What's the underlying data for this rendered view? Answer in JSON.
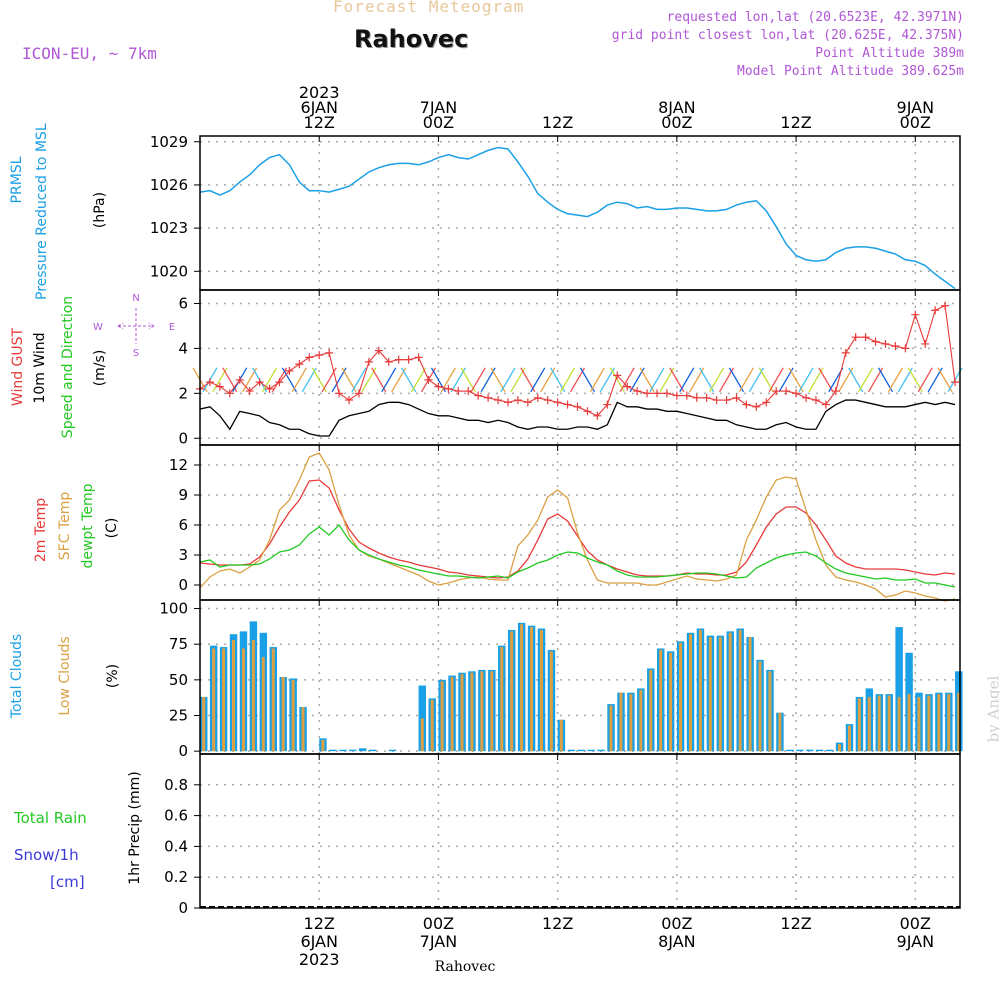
{
  "header": {
    "subtitle": "Forecast Meteogram",
    "location": "Rahovec",
    "model": "ICON-EU, ~ 7km",
    "requested": "requested lon,lat (20.6523E, 42.3971N)",
    "grid_point": "grid point closest lon,lat (20.625E, 42.375N)",
    "point_altitude": "Point Altitude 389m",
    "model_altitude": "Model Point Altitude 389.625m"
  },
  "watermark": "by Angel",
  "footer_label": "Rahovec",
  "time_axis": {
    "ticks": [
      {
        "x": 12,
        "top": [
          "2023",
          "6JAN",
          "12Z"
        ],
        "bottom": [
          "12Z",
          "6JAN",
          "2023"
        ]
      },
      {
        "x": 24,
        "top": [
          "7JAN",
          "00Z"
        ],
        "bottom": [
          "00Z",
          "7JAN"
        ]
      },
      {
        "x": 36,
        "top": [
          "12Z"
        ],
        "bottom": [
          "12Z"
        ]
      },
      {
        "x": 48,
        "top": [
          "8JAN",
          "00Z"
        ],
        "bottom": [
          "00Z",
          "8JAN"
        ]
      },
      {
        "x": 60,
        "top": [
          "12Z"
        ],
        "bottom": [
          "12Z"
        ]
      },
      {
        "x": 72,
        "top": [
          "9JAN",
          "00Z"
        ],
        "bottom": [
          "00Z",
          "9JAN"
        ]
      }
    ]
  },
  "labels": {
    "pressure": [
      "PRMSL",
      "Pressure Reduced to MSL",
      "(hPa)"
    ],
    "wind": [
      "Wind GUST",
      "10m Wind",
      "Speed and Direction",
      "(m/s)"
    ],
    "compass": {
      "n": "N",
      "s": "S",
      "w": "W",
      "e": "E"
    },
    "temp": [
      "2m Temp",
      "SFC Temp",
      "dewpt Temp",
      "(C)"
    ],
    "clouds": [
      "Total Clouds",
      "Low Clouds",
      "(%)"
    ],
    "precip": [
      "1hr Precip (mm)"
    ],
    "precip_legend": [
      "Total  Rain",
      "Snow/1h",
      "[cm]"
    ]
  },
  "colors": {
    "pressure": "#1aa0e6",
    "gust": "#e83a3a",
    "wind": "#000000",
    "temp2m": "#e83a3a",
    "sfc": "#dca042",
    "dewpt": "#22c922",
    "total_clouds": "#1aa0e6",
    "low_clouds": "#dca042",
    "rain": "#22c922",
    "snow": "#3a3ad9",
    "annot": "#b057d6"
  },
  "chart_data": [
    {
      "type": "line",
      "panel": "pressure",
      "x_unit": "hours from 6JAN 00Z",
      "xlim": [
        0,
        76.5
      ],
      "ylim": [
        1018.7,
        1029.4
      ],
      "yticks": [
        1020,
        1023,
        1026,
        1029
      ],
      "x": [
        0,
        1,
        2,
        3,
        4,
        5,
        6,
        7,
        8,
        9,
        10,
        11,
        12,
        13,
        14,
        15,
        16,
        17,
        18,
        19,
        20,
        21,
        22,
        23,
        24,
        25,
        26,
        27,
        28,
        29,
        30,
        31,
        32,
        33,
        34,
        35,
        36,
        37,
        38,
        39,
        40,
        41,
        42,
        43,
        44,
        45,
        46,
        47,
        48,
        49,
        50,
        51,
        52,
        53,
        54,
        55,
        56,
        57,
        58,
        59,
        60,
        61,
        62,
        63,
        64,
        65,
        66,
        67,
        68,
        69,
        70,
        71,
        72,
        73,
        74,
        75,
        76
      ],
      "series": [
        {
          "name": "PRMSL",
          "values": [
            1025.5,
            1025.6,
            1025.3,
            1025.6,
            1026.2,
            1026.7,
            1027.4,
            1027.9,
            1028.1,
            1027.4,
            1026.2,
            1025.6,
            1025.6,
            1025.5,
            1025.7,
            1025.9,
            1026.4,
            1026.9,
            1027.2,
            1027.4,
            1027.5,
            1027.5,
            1027.4,
            1027.6,
            1027.9,
            1028.1,
            1027.9,
            1027.8,
            1028.1,
            1028.4,
            1028.6,
            1028.5,
            1027.6,
            1026.6,
            1025.4,
            1024.8,
            1024.3,
            1024.0,
            1023.9,
            1023.8,
            1024.1,
            1024.6,
            1024.8,
            1024.7,
            1024.4,
            1024.5,
            1024.3,
            1024.3,
            1024.4,
            1024.4,
            1024.3,
            1024.2,
            1024.2,
            1024.3,
            1024.6,
            1024.8,
            1024.9,
            1024.2,
            1023.1,
            1021.9,
            1021.1,
            1020.8,
            1020.7,
            1020.8,
            1021.3,
            1021.6,
            1021.7,
            1021.7,
            1021.6,
            1021.4,
            1021.2,
            1020.8,
            1020.7,
            1020.4,
            1019.8,
            1019.3,
            1018.8
          ]
        }
      ]
    },
    {
      "type": "line",
      "panel": "wind",
      "x_unit": "hours from 6JAN 00Z",
      "xlim": [
        0,
        76.5
      ],
      "ylim": [
        -0.3,
        6.6
      ],
      "yticks": [
        0,
        2,
        4,
        6
      ],
      "x": [
        0,
        1,
        2,
        3,
        4,
        5,
        6,
        7,
        8,
        9,
        10,
        11,
        12,
        13,
        14,
        15,
        16,
        17,
        18,
        19,
        20,
        21,
        22,
        23,
        24,
        25,
        26,
        27,
        28,
        29,
        30,
        31,
        32,
        33,
        34,
        35,
        36,
        37,
        38,
        39,
        40,
        41,
        42,
        43,
        44,
        45,
        46,
        47,
        48,
        49,
        50,
        51,
        52,
        53,
        54,
        55,
        56,
        57,
        58,
        59,
        60,
        61,
        62,
        63,
        64,
        65,
        66,
        67,
        68,
        69,
        70,
        71,
        72,
        73,
        74,
        75,
        76
      ],
      "series": [
        {
          "name": "10m Wind",
          "values": [
            1.3,
            1.4,
            1.0,
            0.4,
            1.2,
            1.1,
            1.0,
            0.7,
            0.6,
            0.4,
            0.4,
            0.2,
            0.1,
            0.1,
            0.8,
            1.0,
            1.1,
            1.2,
            1.5,
            1.6,
            1.6,
            1.5,
            1.3,
            1.1,
            1.0,
            1.0,
            0.9,
            0.8,
            0.8,
            0.7,
            0.8,
            0.7,
            0.5,
            0.4,
            0.5,
            0.5,
            0.4,
            0.4,
            0.5,
            0.5,
            0.4,
            0.6,
            1.6,
            1.4,
            1.4,
            1.3,
            1.3,
            1.2,
            1.2,
            1.1,
            1.0,
            0.9,
            0.8,
            0.8,
            0.6,
            0.5,
            0.4,
            0.4,
            0.6,
            0.7,
            0.5,
            0.4,
            0.4,
            1.2,
            1.5,
            1.7,
            1.7,
            1.6,
            1.5,
            1.4,
            1.4,
            1.4,
            1.5,
            1.6,
            1.5,
            1.6,
            1.5
          ]
        },
        {
          "name": "Wind GUST",
          "values": [
            2.2,
            2.5,
            2.3,
            2.0,
            2.6,
            2.1,
            2.5,
            2.2,
            2.5,
            3.0,
            3.3,
            3.6,
            3.7,
            3.8,
            2.0,
            1.7,
            2.0,
            3.4,
            3.9,
            3.4,
            3.5,
            3.5,
            3.6,
            2.6,
            2.3,
            2.2,
            2.1,
            2.1,
            1.9,
            1.8,
            1.7,
            1.6,
            1.7,
            1.6,
            1.8,
            1.7,
            1.6,
            1.5,
            1.4,
            1.2,
            1.0,
            1.5,
            2.8,
            2.3,
            2.1,
            2.0,
            2.0,
            2.0,
            1.9,
            1.9,
            1.8,
            1.8,
            1.7,
            1.7,
            1.8,
            1.5,
            1.4,
            1.6,
            2.1,
            2.1,
            2.0,
            1.8,
            1.7,
            1.5,
            2.1,
            3.8,
            4.5,
            4.5,
            4.3,
            4.2,
            4.1,
            4.0,
            5.5,
            4.2,
            5.7,
            5.9,
            2.5
          ]
        }
      ],
      "wind_direction_arrows": "colored barbs along y≈2.5 (decorative, hourly)"
    },
    {
      "type": "line",
      "panel": "temperature",
      "x_unit": "hours from 6JAN 00Z",
      "xlim": [
        0,
        76.5
      ],
      "ylim": [
        -1.5,
        14.0
      ],
      "yticks": [
        0,
        3,
        6,
        9,
        12
      ],
      "x": [
        0,
        1,
        2,
        3,
        4,
        5,
        6,
        7,
        8,
        9,
        10,
        11,
        12,
        13,
        14,
        15,
        16,
        17,
        18,
        19,
        20,
        21,
        22,
        23,
        24,
        25,
        26,
        27,
        28,
        29,
        30,
        31,
        32,
        33,
        34,
        35,
        36,
        37,
        38,
        39,
        40,
        41,
        42,
        43,
        44,
        45,
        46,
        47,
        48,
        49,
        50,
        51,
        52,
        53,
        54,
        55,
        56,
        57,
        58,
        59,
        60,
        61,
        62,
        63,
        64,
        65,
        66,
        67,
        68,
        69,
        70,
        71,
        72,
        73,
        74,
        75,
        76
      ],
      "series": [
        {
          "name": "2m Temp",
          "values": [
            2.2,
            2.1,
            2.0,
            2.0,
            2.0,
            2.1,
            2.8,
            4.1,
            5.8,
            7.3,
            8.5,
            10.4,
            10.5,
            9.7,
            7.5,
            5.6,
            4.3,
            3.7,
            3.2,
            2.8,
            2.5,
            2.3,
            2.0,
            1.8,
            1.6,
            1.3,
            1.2,
            1.0,
            0.9,
            0.8,
            0.7,
            0.8,
            1.4,
            2.6,
            4.5,
            6.6,
            7.1,
            6.4,
            4.9,
            3.4,
            2.5,
            2.0,
            1.6,
            1.3,
            1.0,
            0.9,
            0.9,
            0.9,
            1.0,
            1.2,
            1.1,
            1.1,
            1.0,
            1.0,
            1.3,
            2.3,
            4.0,
            5.8,
            7.1,
            7.8,
            7.8,
            7.2,
            6.0,
            4.5,
            2.9,
            2.2,
            1.8,
            1.6,
            1.6,
            1.6,
            1.6,
            1.5,
            1.3,
            1.1,
            1.0,
            1.2,
            1.1
          ]
        },
        {
          "name": "SFC Temp",
          "values": [
            -0.3,
            0.8,
            1.4,
            1.6,
            1.2,
            1.8,
            2.5,
            4.5,
            7.5,
            8.5,
            10.5,
            12.8,
            13.2,
            11.5,
            8.0,
            5.0,
            3.5,
            2.9,
            2.6,
            2.2,
            1.8,
            1.4,
            1.0,
            0.4,
            0.0,
            0.2,
            0.5,
            0.7,
            0.8,
            0.6,
            0.5,
            0.5,
            3.9,
            5.0,
            6.5,
            8.8,
            9.5,
            8.7,
            5.2,
            2.5,
            0.5,
            0.2,
            0.2,
            0.2,
            0.2,
            0.0,
            0.0,
            0.3,
            0.6,
            0.9,
            0.6,
            0.5,
            0.4,
            0.6,
            1.0,
            4.5,
            6.5,
            8.8,
            10.5,
            10.8,
            10.6,
            7.5,
            4.5,
            2.0,
            0.8,
            0.5,
            0.3,
            0.0,
            -0.4,
            -1.2,
            -1.0,
            -0.6,
            -0.8,
            -1.1,
            -1.3,
            -1.6,
            -1.4
          ]
        },
        {
          "name": "dewpt Temp",
          "values": [
            2.3,
            2.5,
            1.8,
            2.0,
            2.0,
            2.0,
            2.1,
            2.6,
            3.3,
            3.5,
            4.0,
            5.1,
            5.8,
            5.0,
            6.0,
            4.5,
            3.5,
            3.0,
            2.6,
            2.3,
            2.0,
            1.8,
            1.5,
            1.3,
            1.1,
            0.9,
            0.9,
            0.8,
            0.7,
            0.8,
            0.9,
            0.7,
            1.3,
            1.7,
            2.2,
            2.5,
            3.0,
            3.3,
            3.2,
            2.7,
            2.3,
            2.0,
            1.4,
            1.0,
            0.8,
            0.8,
            0.8,
            0.9,
            1.0,
            1.1,
            1.2,
            1.2,
            1.1,
            0.9,
            0.7,
            0.8,
            1.7,
            2.2,
            2.7,
            3.0,
            3.2,
            3.3,
            2.9,
            2.2,
            1.6,
            1.2,
            1.0,
            0.8,
            0.6,
            0.7,
            0.5,
            0.5,
            0.6,
            0.2,
            0.2,
            0.0,
            -0.2
          ]
        }
      ]
    },
    {
      "type": "bar",
      "panel": "clouds",
      "x_unit": "hours from 6JAN 00Z",
      "xlim": [
        0,
        76.5
      ],
      "ylim": [
        -2,
        106
      ],
      "yticks": [
        0,
        25,
        50,
        75,
        100
      ],
      "x": [
        0,
        1,
        2,
        3,
        4,
        5,
        6,
        7,
        8,
        9,
        10,
        11,
        12,
        13,
        14,
        15,
        16,
        17,
        18,
        19,
        20,
        21,
        22,
        23,
        24,
        25,
        26,
        27,
        28,
        29,
        30,
        31,
        32,
        33,
        34,
        35,
        36,
        37,
        38,
        39,
        40,
        41,
        42,
        43,
        44,
        45,
        46,
        47,
        48,
        49,
        50,
        51,
        52,
        53,
        54,
        55,
        56,
        57,
        58,
        59,
        60,
        61,
        62,
        63,
        64,
        65,
        66,
        67,
        68,
        69,
        70,
        71,
        72,
        73,
        74,
        75,
        76
      ],
      "series": [
        {
          "name": "Total Clouds",
          "values": [
            38,
            74,
            73,
            82,
            84,
            91,
            83,
            73,
            52,
            51,
            31,
            0,
            9,
            1,
            1,
            1,
            2,
            1,
            0,
            1,
            0,
            0,
            46,
            37,
            50,
            53,
            55,
            56,
            57,
            57,
            74,
            85,
            90,
            88,
            86,
            71,
            22,
            1,
            1,
            1,
            1,
            33,
            41,
            41,
            44,
            58,
            72,
            70,
            77,
            83,
            86,
            81,
            81,
            84,
            86,
            80,
            64,
            57,
            27,
            1,
            1,
            1,
            1,
            1,
            6,
            19,
            38,
            44,
            40,
            40,
            87,
            69,
            41,
            40,
            41,
            41,
            56
          ]
        },
        {
          "name": "Low Clouds",
          "values": [
            38,
            72,
            72,
            78,
            72,
            78,
            66,
            72,
            52,
            50,
            31,
            0,
            8,
            0,
            0,
            0,
            0,
            0,
            0,
            0,
            0,
            0,
            23,
            36,
            49,
            52,
            54,
            55,
            56,
            56,
            73,
            84,
            89,
            87,
            85,
            70,
            22,
            0,
            0,
            0,
            0,
            32,
            41,
            40,
            43,
            57,
            71,
            69,
            76,
            82,
            85,
            80,
            80,
            83,
            85,
            80,
            63,
            56,
            27,
            0,
            0,
            0,
            0,
            0,
            5,
            18,
            37,
            38,
            39,
            39,
            38,
            40,
            38,
            39,
            40,
            40,
            41
          ]
        }
      ]
    },
    {
      "type": "bar",
      "panel": "precip",
      "x_unit": "hours from 6JAN 00Z",
      "xlim": [
        0,
        76.5
      ],
      "ylim": [
        0,
        1.0
      ],
      "yticks": [
        0,
        0.2,
        0.4,
        0.6,
        0.8
      ],
      "series": [
        {
          "name": "Total Rain",
          "values": []
        },
        {
          "name": "Snow/1h",
          "values": []
        }
      ]
    }
  ]
}
